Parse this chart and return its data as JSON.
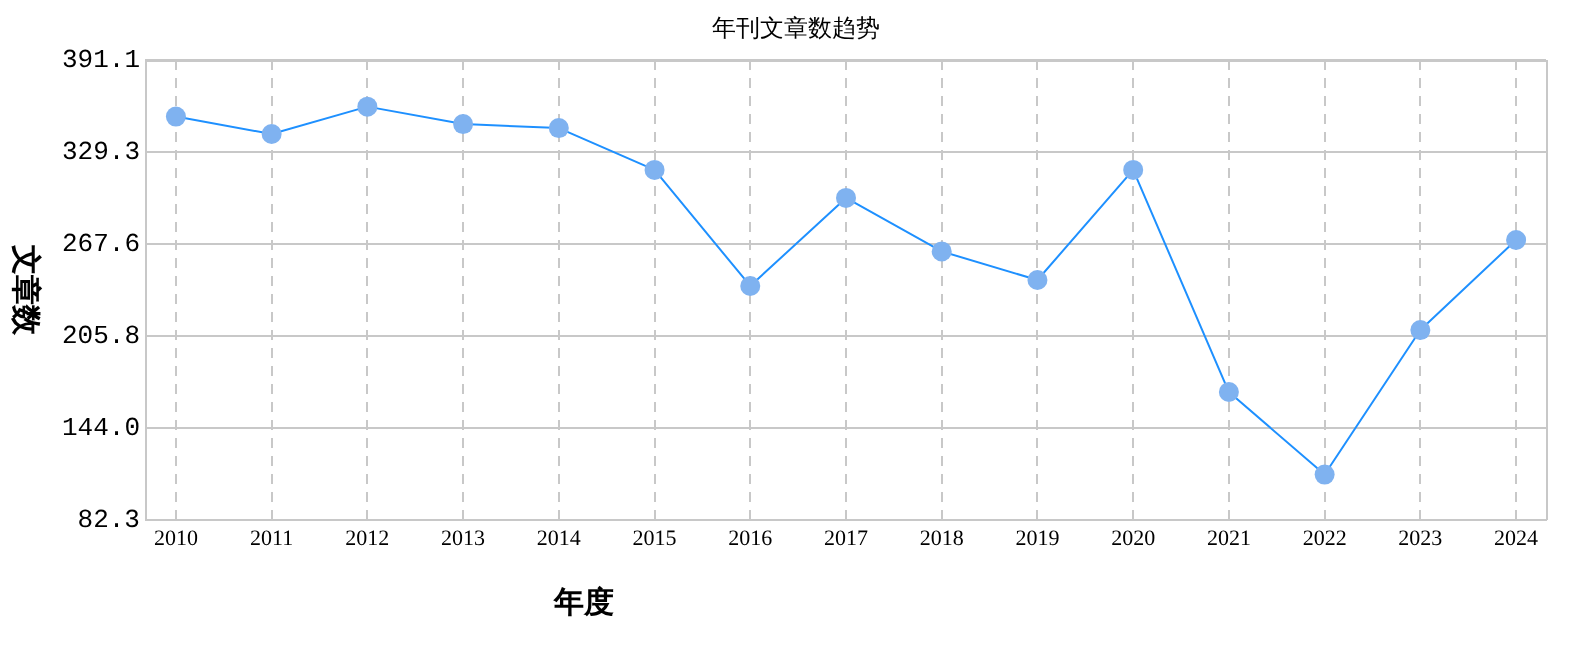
{
  "chart_data": {
    "type": "line",
    "title": "年刊文章数趋势",
    "xlabel": "年度",
    "ylabel": "文章数",
    "categories": [
      "2010",
      "2011",
      "2012",
      "2013",
      "2014",
      "2015",
      "2016",
      "2017",
      "2018",
      "2019",
      "2020",
      "2021",
      "2022",
      "2023",
      "2024"
    ],
    "series": [
      {
        "color": "#1e90ff",
        "values": [
          353.1,
          341.4,
          359.8,
          348.1,
          345.4,
          317.3,
          239.4,
          298.5,
          262.6,
          243.4,
          317.3,
          168.2,
          112.8,
          209.8,
          270.3
        ]
      }
    ],
    "ylim": [
      82.3,
      391.1
    ],
    "yticks": [
      82.3,
      {
        "value": 144,
        "label": "144.0"
      },
      205.8,
      267.6,
      329.3,
      391.1
    ],
    "grid": true,
    "legend": false,
    "marker": "circle",
    "line_style": "solid"
  }
}
